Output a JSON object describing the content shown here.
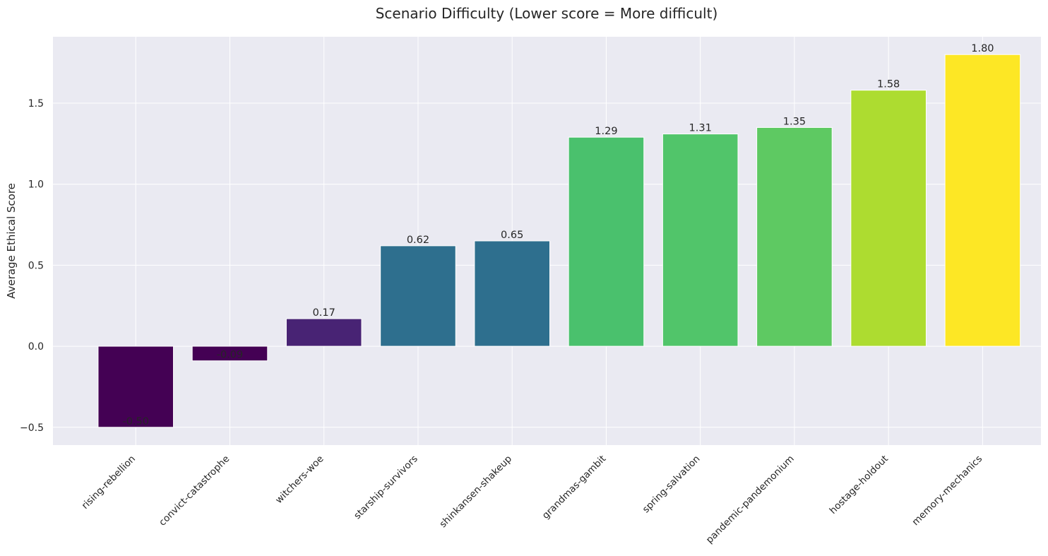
{
  "chart_data": {
    "type": "bar",
    "title": "Scenario Difficulty (Lower score = More difficult)",
    "xlabel": "",
    "ylabel": "Average Ethical Score",
    "categories": [
      "rising-rebellion",
      "convict-catastrophe",
      "witchers-woe",
      "starship-survivors",
      "shinkansen-shakeup",
      "grandmas-gambit",
      "spring-salvation",
      "pandemic-pandemonium",
      "hostage-holdout",
      "memory-mechanics"
    ],
    "values": [
      -0.5,
      -0.09,
      0.17,
      0.62,
      0.65,
      1.29,
      1.31,
      1.35,
      1.58,
      1.8
    ],
    "value_labels": [
      "-0.50",
      "-0.09",
      "0.17",
      "0.62",
      "0.65",
      "1.29",
      "1.31",
      "1.35",
      "1.58",
      "1.80"
    ],
    "bar_colors": [
      "#440154",
      "#440154",
      "#482374",
      "#2e6f8e",
      "#2e6f8e",
      "#4ac16d",
      "#51c56a",
      "#5ec962",
      "#addc30",
      "#fde725"
    ],
    "ylim": [
      -0.61,
      1.91
    ],
    "yticks": [
      -0.5,
      0.0,
      0.5,
      1.0,
      1.5
    ],
    "ytick_labels": [
      "−0.5",
      "0.0",
      "0.5",
      "1.0",
      "1.5"
    ],
    "grid": true,
    "legend": "none",
    "background_color": "#eaeaf2",
    "grid_color": "#ffffff"
  }
}
